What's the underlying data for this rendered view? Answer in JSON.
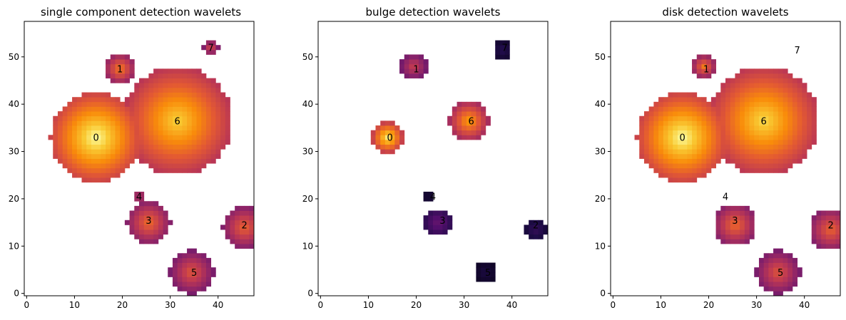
{
  "chart_data": [
    {
      "type": "heatmap",
      "title": "single component detection wavelets",
      "xlim": [
        -0.5,
        47.5
      ],
      "ylim": [
        -0.5,
        57.5
      ],
      "xticks": [
        0,
        10,
        20,
        30,
        40
      ],
      "yticks": [
        0,
        10,
        20,
        30,
        40,
        50
      ],
      "colormap": "inferno",
      "background_color": "#ffffff",
      "blobs": [
        {
          "label": "0",
          "x": 14.5,
          "y": 33.0,
          "r": 9.5,
          "level": 1.0
        },
        {
          "label": "6",
          "x": 31.5,
          "y": 36.5,
          "r": 11.5,
          "level": 0.9
        },
        {
          "label": "1",
          "x": 19.5,
          "y": 47.5,
          "r": 3.2,
          "level": 0.72
        },
        {
          "label": "7",
          "x": 38.5,
          "y": 52.0,
          "r": 1.8,
          "level": 0.58
        },
        {
          "label": "4",
          "x": 23.5,
          "y": 20.5,
          "r": 1.5,
          "level": 0.55
        },
        {
          "label": "3",
          "x": 25.5,
          "y": 15.0,
          "r": 4.5,
          "level": 0.68
        },
        {
          "label": "2",
          "x": 45.5,
          "y": 14.0,
          "r": 4.5,
          "level": 0.66
        },
        {
          "label": "5",
          "x": 34.5,
          "y": 4.5,
          "r": 4.6,
          "level": 0.62
        }
      ],
      "text_labels": [
        {
          "text": "0",
          "x": 14.5,
          "y": 33.0
        },
        {
          "text": "1",
          "x": 19.5,
          "y": 47.5
        },
        {
          "text": "2",
          "x": 45.5,
          "y": 14.5
        },
        {
          "text": "3",
          "x": 25.5,
          "y": 15.5
        },
        {
          "text": "4",
          "x": 23.5,
          "y": 20.5
        },
        {
          "text": "5",
          "x": 35.0,
          "y": 4.5
        },
        {
          "text": "6",
          "x": 31.5,
          "y": 36.5
        },
        {
          "text": "7",
          "x": 38.5,
          "y": 52.0
        }
      ]
    },
    {
      "type": "heatmap",
      "title": "bulge detection wavelets",
      "xlim": [
        -0.5,
        47.5
      ],
      "ylim": [
        -0.5,
        57.5
      ],
      "xticks": [
        0,
        10,
        20,
        30,
        40
      ],
      "yticks": [
        0,
        10,
        20,
        30,
        40,
        50
      ],
      "colormap": "inferno",
      "background_color": "#ffffff",
      "blobs": [
        {
          "label": "0",
          "x": 14.0,
          "y": 33.0,
          "r": 3.3,
          "level": 0.95
        },
        {
          "label": "6",
          "x": 31.0,
          "y": 36.5,
          "r": 4.2,
          "level": 0.8
        },
        {
          "label": "1",
          "x": 19.5,
          "y": 48.0,
          "r": 3.0,
          "level": 0.55
        },
        {
          "label": "7",
          "x": 38.0,
          "y": 51.5,
          "r": 2.0,
          "level": 0.15
        },
        {
          "label": "4",
          "x": 22.5,
          "y": 20.5,
          "r": 1.2,
          "level": 0.12
        },
        {
          "label": "3",
          "x": 24.5,
          "y": 15.0,
          "r": 2.8,
          "level": 0.3
        },
        {
          "label": "2",
          "x": 45.0,
          "y": 13.5,
          "r": 2.4,
          "level": 0.18
        },
        {
          "label": "5",
          "x": 34.5,
          "y": 4.5,
          "r": 2.2,
          "level": 0.12
        }
      ],
      "text_labels": [
        {
          "text": "0",
          "x": 14.5,
          "y": 33.0
        },
        {
          "text": "1",
          "x": 20.0,
          "y": 47.5
        },
        {
          "text": "2",
          "x": 45.0,
          "y": 14.5
        },
        {
          "text": "3",
          "x": 25.5,
          "y": 15.5
        },
        {
          "text": "4",
          "x": 23.5,
          "y": 20.5
        },
        {
          "text": "5",
          "x": 35.0,
          "y": 4.5
        },
        {
          "text": "6",
          "x": 31.5,
          "y": 36.5
        },
        {
          "text": "7",
          "x": 38.5,
          "y": 52.0
        }
      ]
    },
    {
      "type": "heatmap",
      "title": "disk detection wavelets",
      "xlim": [
        -0.5,
        47.5
      ],
      "ylim": [
        -0.5,
        57.5
      ],
      "xticks": [
        0,
        10,
        20,
        30,
        40
      ],
      "yticks": [
        0,
        10,
        20,
        30,
        40,
        50
      ],
      "colormap": "inferno",
      "background_color": "#ffffff",
      "blobs": [
        {
          "label": "0",
          "x": 14.5,
          "y": 33.0,
          "r": 9.5,
          "level": 1.0
        },
        {
          "label": "6",
          "x": 31.5,
          "y": 36.5,
          "r": 11.5,
          "level": 0.92
        },
        {
          "label": "1",
          "x": 19.0,
          "y": 48.0,
          "r": 2.6,
          "level": 0.7
        },
        {
          "label": "3",
          "x": 25.5,
          "y": 14.5,
          "r": 4.5,
          "level": 0.68
        },
        {
          "label": "2",
          "x": 45.5,
          "y": 13.5,
          "r": 4.5,
          "level": 0.66
        },
        {
          "label": "5",
          "x": 34.5,
          "y": 4.5,
          "r": 4.6,
          "level": 0.62
        }
      ],
      "text_labels": [
        {
          "text": "0",
          "x": 14.5,
          "y": 33.0
        },
        {
          "text": "1",
          "x": 19.5,
          "y": 47.5
        },
        {
          "text": "2",
          "x": 45.5,
          "y": 14.5
        },
        {
          "text": "3",
          "x": 25.5,
          "y": 15.5
        },
        {
          "text": "4",
          "x": 23.5,
          "y": 20.5
        },
        {
          "text": "5",
          "x": 35.0,
          "y": 4.5
        },
        {
          "text": "6",
          "x": 31.5,
          "y": 36.5
        },
        {
          "text": "7",
          "x": 38.5,
          "y": 51.5
        }
      ]
    }
  ]
}
